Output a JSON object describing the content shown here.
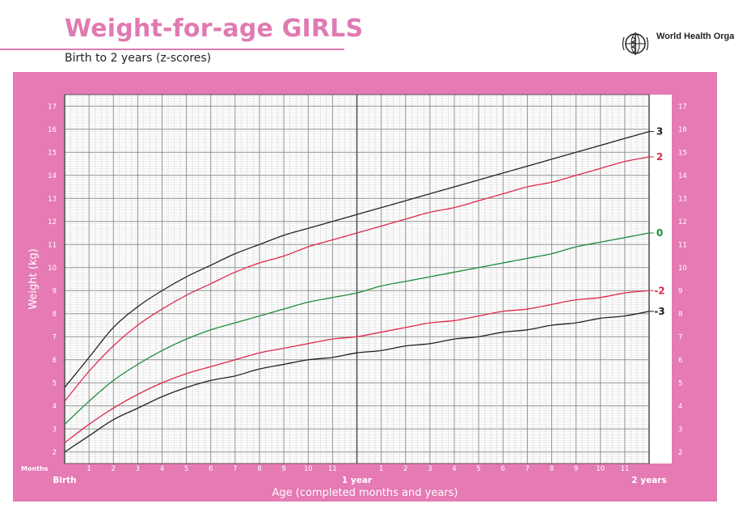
{
  "header": {
    "title": "Weight-for-age GIRLS",
    "subtitle": "Birth to 2 years (z-scores)",
    "organization": "World Health Organization"
  },
  "colors": {
    "frame": "#e57ab4",
    "zero": "#1e8c3c",
    "two": "#e0284a",
    "three": "#222222"
  },
  "chart_data": {
    "type": "line",
    "xlabel": "Age (completed months and years)",
    "ylabel": "Weight (kg)",
    "x_unit_label": "Months",
    "xlim": [
      0,
      24
    ],
    "ylim": [
      1.5,
      17.5
    ],
    "grid": true,
    "month_ticks": [
      "1",
      "2",
      "3",
      "4",
      "5",
      "6",
      "7",
      "8",
      "9",
      "10",
      "11",
      "",
      "1",
      "2",
      "3",
      "4",
      "5",
      "6",
      "7",
      "8",
      "9",
      "10",
      "11",
      ""
    ],
    "year_labels": [
      {
        "x": 0,
        "label": "Birth"
      },
      {
        "x": 12,
        "label": "1 year"
      },
      {
        "x": 24,
        "label": "2 years"
      }
    ],
    "y_ticks": [
      2,
      3,
      4,
      5,
      6,
      7,
      8,
      9,
      10,
      11,
      12,
      13,
      14,
      15,
      16,
      17
    ],
    "x": [
      0,
      1,
      2,
      3,
      4,
      5,
      6,
      7,
      8,
      9,
      10,
      11,
      12,
      13,
      14,
      15,
      16,
      17,
      18,
      19,
      20,
      21,
      22,
      23,
      24
    ],
    "series": [
      {
        "name": "3",
        "color": "#222222",
        "values": [
          4.8,
          6.1,
          7.4,
          8.3,
          9.0,
          9.6,
          10.1,
          10.6,
          11.0,
          11.4,
          11.7,
          12.0,
          12.3,
          12.6,
          12.9,
          13.2,
          13.5,
          13.8,
          14.1,
          14.4,
          14.7,
          15.0,
          15.3,
          15.6,
          15.9
        ]
      },
      {
        "name": "2",
        "color": "#e0284a",
        "values": [
          4.2,
          5.5,
          6.6,
          7.5,
          8.2,
          8.8,
          9.3,
          9.8,
          10.2,
          10.5,
          10.9,
          11.2,
          11.5,
          11.8,
          12.1,
          12.4,
          12.6,
          12.9,
          13.2,
          13.5,
          13.7,
          14.0,
          14.3,
          14.6,
          14.8
        ]
      },
      {
        "name": "0",
        "color": "#1e8c3c",
        "values": [
          3.2,
          4.2,
          5.1,
          5.8,
          6.4,
          6.9,
          7.3,
          7.6,
          7.9,
          8.2,
          8.5,
          8.7,
          8.9,
          9.2,
          9.4,
          9.6,
          9.8,
          10.0,
          10.2,
          10.4,
          10.6,
          10.9,
          11.1,
          11.3,
          11.5
        ]
      },
      {
        "name": "-2",
        "color": "#e0284a",
        "values": [
          2.4,
          3.2,
          3.9,
          4.5,
          5.0,
          5.4,
          5.7,
          6.0,
          6.3,
          6.5,
          6.7,
          6.9,
          7.0,
          7.2,
          7.4,
          7.6,
          7.7,
          7.9,
          8.1,
          8.2,
          8.4,
          8.6,
          8.7,
          8.9,
          9.0
        ]
      },
      {
        "name": "-3",
        "color": "#222222",
        "values": [
          2.0,
          2.7,
          3.4,
          3.9,
          4.4,
          4.8,
          5.1,
          5.3,
          5.6,
          5.8,
          6.0,
          6.1,
          6.3,
          6.4,
          6.6,
          6.7,
          6.9,
          7.0,
          7.2,
          7.3,
          7.5,
          7.6,
          7.8,
          7.9,
          8.1
        ]
      }
    ]
  }
}
